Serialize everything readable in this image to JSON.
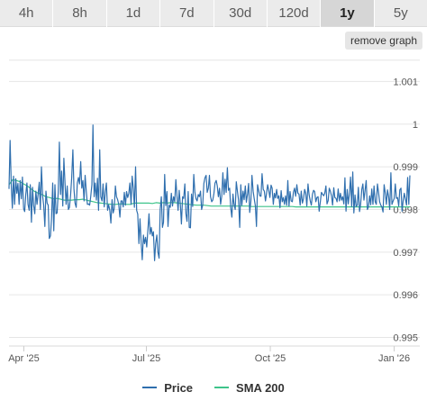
{
  "tabs": [
    {
      "label": "4h"
    },
    {
      "label": "8h"
    },
    {
      "label": "1d"
    },
    {
      "label": "7d"
    },
    {
      "label": "30d"
    },
    {
      "label": "120d"
    },
    {
      "label": "1y",
      "active": true
    },
    {
      "label": "5y"
    }
  ],
  "remove_graph_label": "remove graph",
  "colors": {
    "price": "#2f6fae",
    "sma": "#3ec48a",
    "grid": "#e6e6e6",
    "axis_text": "#555555"
  },
  "chart_data": {
    "type": "line",
    "x_ticks": [
      "Apr '25",
      "Jul '25",
      "Oct '25",
      "Jan '26"
    ],
    "x_range": [
      "2025-03-21",
      "2026-01-20"
    ],
    "y_ticks": [
      "0.995",
      "0.996",
      "0.997",
      "0.998",
      "0.999",
      "1",
      "1.001"
    ],
    "ylim": [
      0.9948,
      1.0016
    ],
    "y_scale": "linear",
    "grid": true,
    "legend_position": "bottom-center",
    "series": [
      {
        "name": "Price",
        "color": "#2f6fae",
        "values": [
          0.99848,
          0.99962,
          0.99858,
          0.99803,
          0.99878,
          0.99812,
          0.99872,
          0.99838,
          0.99861,
          0.99812,
          0.99868,
          0.99825,
          0.99876,
          0.99802,
          0.99795,
          0.99835,
          0.99862,
          0.99812,
          0.99798,
          0.99858,
          0.9977,
          0.99852,
          0.9981,
          0.9979,
          0.99843,
          0.99812,
          0.99836,
          0.99864,
          0.998,
          0.999,
          0.99832,
          0.9981,
          0.9976,
          0.99843,
          0.99815,
          0.9981,
          0.99732,
          0.99738,
          0.99778,
          0.99862,
          0.9975,
          0.99858,
          0.9979,
          0.99792,
          0.99843,
          0.99958,
          0.99835,
          0.9989,
          0.99808,
          0.9992,
          0.9986,
          0.99812,
          0.99855,
          0.998,
          0.99805,
          0.99835,
          0.99875,
          0.9994,
          0.99848,
          0.99815,
          0.99805,
          0.99862,
          0.99875,
          0.9986,
          0.99912,
          0.9985,
          0.99868,
          0.9982,
          0.9988,
          0.99842,
          0.99812,
          0.99813,
          0.9981,
          0.9983,
          0.99858,
          0.99998,
          0.9983,
          0.99862,
          0.99822,
          0.99873,
          0.99798,
          0.9994,
          0.9983,
          0.9982,
          0.9986,
          0.99806,
          0.99842,
          0.99862,
          0.99798,
          0.99811,
          0.99798,
          0.99768,
          0.99823,
          0.99792,
          0.99802,
          0.99855,
          0.9983,
          0.99823,
          0.99812,
          0.99782,
          0.9982,
          0.9982,
          0.99806,
          0.9984,
          0.9981,
          0.99842,
          0.99828,
          0.99838,
          0.99862,
          0.99812,
          0.99878,
          0.99849,
          0.99805,
          0.999,
          0.99798,
          0.99789,
          0.9972,
          0.99778,
          0.99722,
          0.99682,
          0.9974,
          0.9972,
          0.99735,
          0.99712,
          0.9975,
          0.9979,
          0.99742,
          0.99758,
          0.99738,
          0.99748,
          0.9968,
          0.9972,
          0.9974,
          0.997,
          0.99686,
          0.998,
          0.9983,
          0.99758,
          0.9977,
          0.99882,
          0.99809,
          0.99842,
          0.9976,
          0.9981,
          0.99805,
          0.99838,
          0.99808,
          0.9983,
          0.99818,
          0.9987,
          0.9983,
          0.99798,
          0.99845,
          0.99812,
          0.99766,
          0.9983,
          0.99826,
          0.9986,
          0.9979,
          0.99772,
          0.99842,
          0.99758,
          0.99757,
          0.99836,
          0.99807,
          0.99882,
          0.99841,
          0.99825,
          0.9982,
          0.99835,
          0.9983,
          0.99843,
          0.998,
          0.9981,
          0.99861,
          0.99874,
          0.9988,
          0.9984,
          0.9985,
          0.9988,
          0.9983,
          0.99818,
          0.99822,
          0.99838,
          0.99862,
          0.99868,
          0.99855,
          0.9983,
          0.9985,
          0.99812,
          0.99832,
          0.99886,
          0.99835,
          0.99871,
          0.9984,
          0.99898,
          0.99845,
          0.9985,
          0.99804,
          0.99782,
          0.99836,
          0.99812,
          0.998,
          0.99865,
          0.99842,
          0.99822,
          0.99758,
          0.99858,
          0.9981,
          0.99843,
          0.99823,
          0.99855,
          0.99817,
          0.99837,
          0.99861,
          0.99793,
          0.9982,
          0.9988,
          0.99843,
          0.99825,
          0.99808,
          0.9976,
          0.99858,
          0.99844,
          0.99832,
          0.99831,
          0.99884,
          0.99847,
          0.99843,
          0.9982,
          0.99838,
          0.99858,
          0.99844,
          0.99828,
          0.99857,
          0.9985,
          0.99812,
          0.99838,
          0.99827,
          0.99847,
          0.99826,
          0.99832,
          0.99804,
          0.99844,
          0.99818,
          0.99828,
          0.99812,
          0.99832,
          0.9981,
          0.99868,
          0.99808,
          0.99842,
          0.9982,
          0.99818,
          0.9984,
          0.9985,
          0.99831,
          0.99858,
          0.99838,
          0.99836,
          0.9981,
          0.99843,
          0.99815,
          0.99825,
          0.99847,
          0.99838,
          0.99808,
          0.9986,
          0.99835,
          0.9982,
          0.9981,
          0.99836,
          0.99845,
          0.99842,
          0.99818,
          0.99828,
          0.9983,
          0.99796,
          0.99818,
          0.9984,
          0.99836,
          0.99832,
          0.99838,
          0.99855,
          0.99813,
          0.99821,
          0.9985,
          0.99843,
          0.99832,
          0.9981,
          0.99851,
          0.99828,
          0.99826,
          0.99818,
          0.99848,
          0.9982,
          0.99838,
          0.99822,
          0.9983,
          0.99813,
          0.99874,
          0.99796,
          0.99847,
          0.99813,
          0.99838,
          0.99876,
          0.99807,
          0.99888,
          0.99792,
          0.99834,
          0.99807,
          0.9981,
          0.99852,
          0.99795,
          0.99812,
          0.99847,
          0.9986,
          0.99822,
          0.99846,
          0.99868,
          0.998,
          0.99806,
          0.99832,
          0.99811,
          0.99848,
          0.99812,
          0.99855,
          0.99818,
          0.99812,
          0.9986,
          0.9984,
          0.99818,
          0.9981,
          0.99806,
          0.99794,
          0.99858,
          0.99838,
          0.99812,
          0.99846,
          0.9983,
          0.998,
          0.99886,
          0.99812,
          0.9982,
          0.99826,
          0.9986,
          0.99826,
          0.99828,
          0.99808,
          0.99846,
          0.9985,
          0.99796,
          0.9982,
          0.99838,
          0.99825,
          0.9981,
          0.99875,
          0.99812,
          0.9988
        ]
      },
      {
        "name": "SMA 200",
        "color": "#3ec48a",
        "values": [
          0.99858,
          0.9987,
          0.99868,
          0.99865,
          0.9986,
          0.99855,
          0.99848,
          0.99842,
          0.99838,
          0.99835,
          0.9983,
          0.99828,
          0.99825,
          0.99826,
          0.99824,
          0.99822,
          0.99822,
          0.99822,
          0.99823,
          0.99823,
          0.99824,
          0.99822,
          0.9982,
          0.99818,
          0.99816,
          0.99815,
          0.99814,
          0.99813,
          0.99812,
          0.99812,
          0.99813,
          0.99813,
          0.99812,
          0.99812,
          0.99815,
          0.99815,
          0.99815,
          0.99815,
          0.99815,
          0.99814,
          0.99816,
          0.99815,
          0.99816,
          0.99815,
          0.99816,
          0.99816,
          0.99815,
          0.99814,
          0.99813,
          0.99812,
          0.99811,
          0.9981,
          0.9981,
          0.9981,
          0.99809,
          0.99808,
          0.99808,
          0.99808,
          0.99808,
          0.99808,
          0.99808,
          0.99808,
          0.99808,
          0.99808,
          0.99808,
          0.99808,
          0.99807,
          0.99807,
          0.99807,
          0.99807,
          0.99807,
          0.99807,
          0.99807,
          0.99807,
          0.99807,
          0.99807,
          0.99807,
          0.99807,
          0.99806,
          0.99806,
          0.99806,
          0.99806,
          0.99806,
          0.99806,
          0.99806,
          0.99806,
          0.99806,
          0.99806,
          0.99806,
          0.99806,
          0.99806,
          0.99806,
          0.99806,
          0.99806,
          0.99806,
          0.99806,
          0.99806,
          0.99806,
          0.99806,
          0.99806,
          0.99806,
          0.99806,
          0.99806,
          0.99806,
          0.99806,
          0.99806,
          0.99806,
          0.99806,
          0.99806,
          0.99806
        ]
      }
    ]
  }
}
